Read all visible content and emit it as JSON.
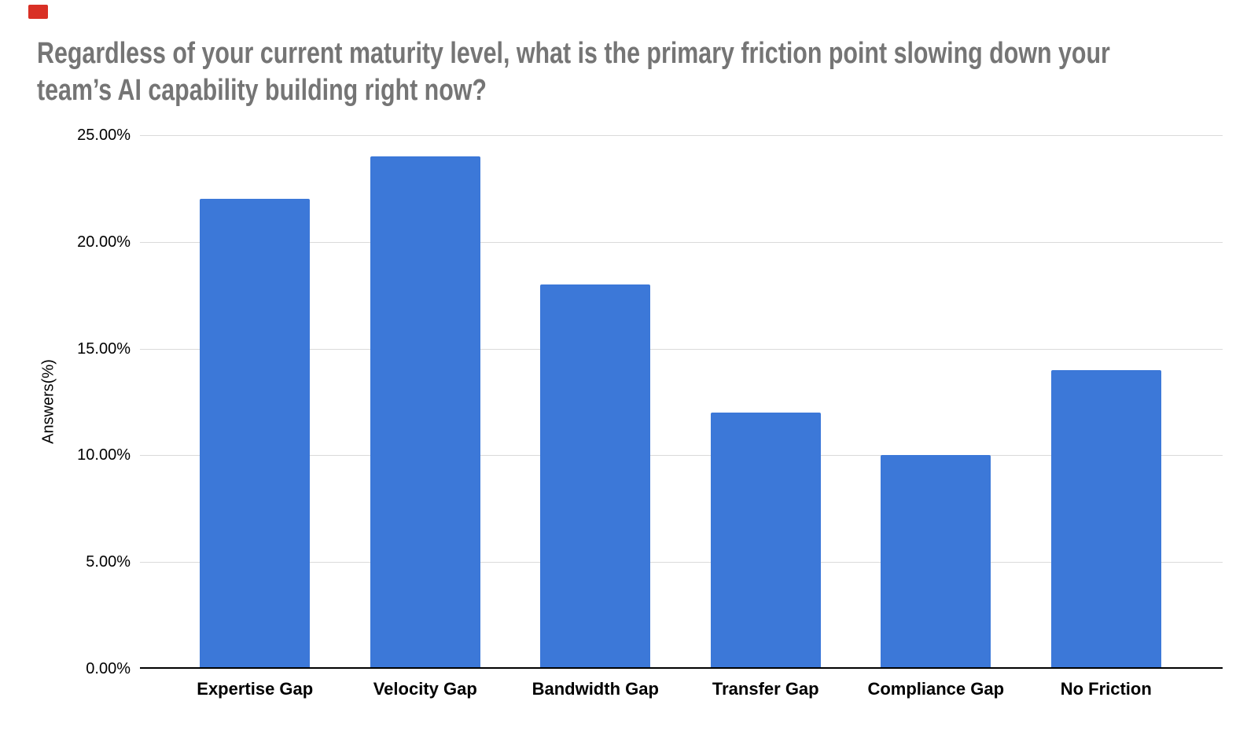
{
  "page": {
    "background": "#ffffff",
    "marker_color": "#d93025"
  },
  "chart_data": {
    "type": "bar",
    "title": "Regardless of your current maturity level, what is the primary friction point slowing down your team’s AI capability building right now?",
    "title_line1": "Regardless of your current maturity level, what is the primary friction point slowing down your",
    "title_line2": "team’s AI capability building right now?",
    "xlabel": "",
    "ylabel": "Answers(%)",
    "categories": [
      "Expertise Gap",
      "Velocity Gap",
      "Bandwidth Gap",
      "Transfer Gap",
      "Compliance Gap",
      "No Friction"
    ],
    "values": [
      22,
      24,
      18,
      12,
      10,
      14
    ],
    "unit": "%",
    "ylim": [
      0,
      25
    ],
    "yticks": [
      0,
      5,
      10,
      15,
      20,
      25
    ],
    "ytick_labels": [
      "0.00%",
      "5.00%",
      "10.00%",
      "15.00%",
      "20.00%",
      "25.00%"
    ],
    "grid": true,
    "legend": "none",
    "colors": {
      "bar": "#3c78d8",
      "gridline": "#dadada",
      "axis_line": "#000000",
      "tick_label": "#000000",
      "category_label": "#000000",
      "title": "#757575"
    }
  }
}
